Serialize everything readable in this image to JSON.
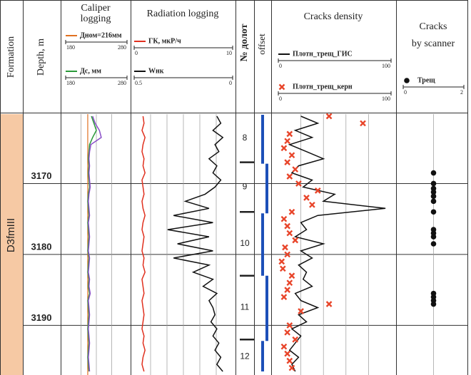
{
  "chart_data": {
    "type": "well-log",
    "formation_label": "Formation",
    "depth_label": "Depth, m",
    "formation": "D3fmIII",
    "ylim": [
      3160.2,
      3196.8
    ],
    "yticks": [
      3170,
      3180,
      3190
    ],
    "depth": [
      3160.5,
      3161.5,
      3162.5,
      3163.5,
      3164.5,
      3165.5,
      3166.5,
      3167.5,
      3168.5,
      3169.5,
      3170.5,
      3171.5,
      3172.5,
      3173.5,
      3174.5,
      3175.5,
      3176.5,
      3177.5,
      3178.5,
      3179.5,
      3180.5,
      3181.5,
      3182.5,
      3183.5,
      3184.5,
      3185.5,
      3186.5,
      3187.5,
      3188.5,
      3189.5,
      3190.5,
      3191.5,
      3192.5,
      3193.5,
      3194.5,
      3195.5,
      3196.5
    ],
    "tracks": [
      {
        "title": [
          "Caliper",
          "logging"
        ],
        "series": [
          {
            "name": "Дном=216мм",
            "kind": "constant",
            "color": "#e07020",
            "value": 216,
            "xlim": [
              180,
              280
            ]
          },
          {
            "name": "Дс, мм",
            "kind": "line",
            "color": "#2a9a3a",
            "xlim": [
              180,
              280
            ],
            "values": [
              222,
              226,
              230,
              224,
              219,
              218,
              217,
              218,
              217,
              218,
              219,
              217,
              216,
              217,
              218,
              216,
              217,
              218,
              217,
              216,
              218,
              217,
              216,
              218,
              217,
              219,
              216,
              217,
              218,
              217,
              216,
              217,
              218,
              217,
              216,
              217,
              218
            ]
          },
          {
            "kind": "line",
            "color": "#8a4fc8",
            "values": [
              224,
              228,
              235,
              238,
              221,
              219,
              218,
              219,
              218,
              219,
              220,
              218,
              217,
              218,
              219,
              217,
              218,
              219,
              218,
              217,
              219,
              218,
              217,
              219,
              218,
              220,
              217,
              218,
              219,
              218,
              217,
              218,
              219,
              218,
              217,
              218,
              219
            ]
          }
        ]
      },
      {
        "title": [
          "Radiation logging"
        ],
        "series": [
          {
            "name": "ГК, мкР/ч",
            "kind": "line",
            "color": "#e0301e",
            "xlim": [
              0,
              10
            ],
            "values": [
              0.9,
              1.0,
              0.8,
              1.1,
              0.9,
              0.8,
              1.0,
              0.9,
              1.1,
              0.8,
              0.9,
              1.0,
              0.8,
              0.9,
              1.1,
              0.9,
              0.8,
              1.0,
              0.9,
              0.8,
              1.0,
              0.9,
              1.1,
              0.8,
              0.9,
              1.0,
              0.8,
              0.9,
              1.0,
              0.9,
              0.8,
              1.0,
              0.9,
              1.1,
              0.9,
              0.8,
              1.0
            ]
          },
          {
            "name": "Wнк",
            "kind": "line",
            "color": "#111111",
            "xlim": [
              0.5,
              0
            ],
            "values": [
              0.08,
              0.06,
              0.1,
              0.05,
              0.09,
              0.07,
              0.12,
              0.08,
              0.1,
              0.06,
              0.09,
              0.14,
              0.24,
              0.12,
              0.3,
              0.1,
              0.33,
              0.12,
              0.28,
              0.1,
              0.3,
              0.12,
              0.2,
              0.1,
              0.15,
              0.08,
              0.12,
              0.1,
              0.09,
              0.11,
              0.08,
              0.1,
              0.07,
              0.09,
              0.06,
              0.08,
              0.05
            ]
          }
        ]
      },
      {
        "title": [
          "Cracks density"
        ],
        "series": [
          {
            "name": "Плотн_трещ_ГИС",
            "kind": "line",
            "color": "#111111",
            "xlim": [
              0,
              100
            ],
            "values": [
              20,
              35,
              15,
              30,
              10,
              25,
              40,
              18,
              12,
              30,
              22,
              50,
              40,
              95,
              35,
              20,
              25,
              15,
              40,
              20,
              30,
              18,
              25,
              22,
              30,
              15,
              20,
              35,
              18,
              25,
              12,
              20,
              15,
              10,
              18,
              12,
              15
            ]
          },
          {
            "name": "Плотн_трещ_керн",
            "kind": "scatter",
            "marker": "cross",
            "color": "#e8452a",
            "xlim": [
              0,
              100
            ],
            "depths": [
              3160.5,
              3161.5,
              3163,
              3164,
              3165,
              3166,
              3167,
              3168,
              3169,
              3170,
              3171,
              3172,
              3173,
              3174,
              3175,
              3176,
              3177,
              3178,
              3179,
              3180,
              3181,
              3182,
              3183,
              3184,
              3185,
              3186,
              3187,
              3188,
              3190,
              3191,
              3192,
              3193,
              3194,
              3195,
              3196
            ],
            "values": [
              45,
              75,
              10,
              8,
              5,
              12,
              8,
              15,
              10,
              18,
              35,
              25,
              30,
              12,
              5,
              8,
              10,
              15,
              6,
              8,
              3,
              4,
              12,
              10,
              8,
              5,
              45,
              20,
              10,
              8,
              15,
              5,
              8,
              10,
              12
            ]
          }
        ]
      },
      {
        "title": [
          "Cracks",
          "by scanner"
        ],
        "series": [
          {
            "name": "Трещ",
            "kind": "scatter",
            "marker": "dot",
            "color": "#111111",
            "xlim": [
              0,
              2
            ],
            "depths": [
              3168.5,
              3170,
              3170.7,
              3171.2,
              3171.8,
              3172.5,
              3174,
              3176.5,
              3177,
              3177.5,
              3178.5,
              3185.5,
              3186,
              3186.5,
              3187
            ],
            "values": [
              1,
              1,
              1,
              1,
              1,
              1,
              1,
              1,
              1,
              1,
              1,
              1,
              1,
              1,
              1
            ]
          }
        ]
      }
    ],
    "bits": {
      "label": "№ долот",
      "numbers": [
        "8",
        "9",
        "10",
        "11",
        "12"
      ],
      "boundaries": [
        3167,
        3174,
        3183,
        3192
      ]
    },
    "offset": {
      "label": "offset",
      "intervals": [
        [
          3160.3,
          3167.2
        ],
        [
          3167.2,
          3174.2
        ],
        [
          3174.2,
          3183
        ],
        [
          3183,
          3192.2
        ],
        [
          3192.2,
          3196.5
        ]
      ]
    }
  }
}
